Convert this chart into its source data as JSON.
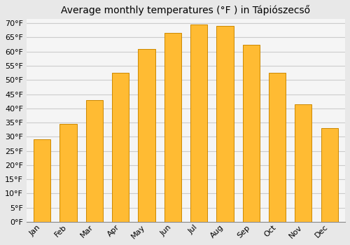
{
  "title": "Average monthly temperatures (°F ) in Tápiószecső",
  "months": [
    "Jan",
    "Feb",
    "Mar",
    "Apr",
    "May",
    "Jun",
    "Jul",
    "Aug",
    "Sep",
    "Oct",
    "Nov",
    "Dec"
  ],
  "values": [
    29.0,
    34.5,
    43.0,
    52.5,
    61.0,
    66.5,
    69.5,
    69.0,
    62.5,
    52.5,
    41.5,
    33.0
  ],
  "bar_color": "#FFBB33",
  "bar_edge_color": "#CC8800",
  "background_color": "#e8e8e8",
  "plot_background_color": "#f5f5f5",
  "grid_color": "#cccccc",
  "ytick_min": 0,
  "ytick_max": 70,
  "ytick_step": 5,
  "title_fontsize": 10,
  "tick_fontsize": 8
}
